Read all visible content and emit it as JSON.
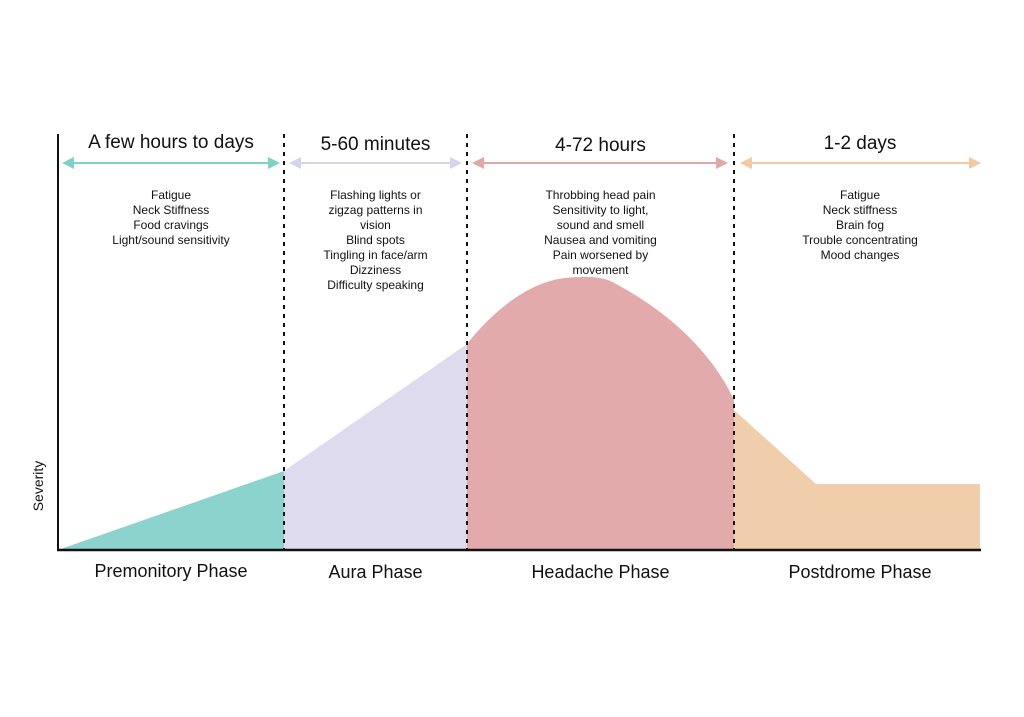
{
  "y_axis_label": "Severity",
  "phases": [
    {
      "id": "premonitory",
      "name": "Premonitory Phase",
      "duration": "A few hours to days",
      "color": "#8dd3cd",
      "arrow_color": "#7fd1c3",
      "symptoms": [
        "Fatigue",
        "Neck Stiffness",
        "Food cravings",
        "Light/sound sensitivity"
      ]
    },
    {
      "id": "aura",
      "name": "Aura Phase",
      "duration": "5-60 minutes",
      "color": "#dedbef",
      "arrow_color": "#d6d3ec",
      "symptoms": [
        "Flashing lights or",
        "zigzag patterns in",
        "vision",
        "Blind spots",
        "Tingling in face/arm",
        "Dizziness",
        "Difficulty speaking"
      ]
    },
    {
      "id": "headache",
      "name": "Headache Phase",
      "duration": "4-72 hours",
      "color": "#e2aaaa",
      "arrow_color": "#e2a7a7",
      "symptoms": [
        "Throbbing head pain",
        "Sensitivity to light,",
        "sound and smell",
        "Nausea and vomiting",
        "Pain worsened by",
        "movement"
      ]
    },
    {
      "id": "postdrome",
      "name": "Postdrome Phase",
      "duration": "1-2 days",
      "color": "#f0cdab",
      "arrow_color": "#f2c9a2",
      "symptoms": [
        "Fatigue",
        "Neck stiffness",
        "Brain fog",
        "Trouble concentrating",
        "Mood changes"
      ]
    }
  ]
}
